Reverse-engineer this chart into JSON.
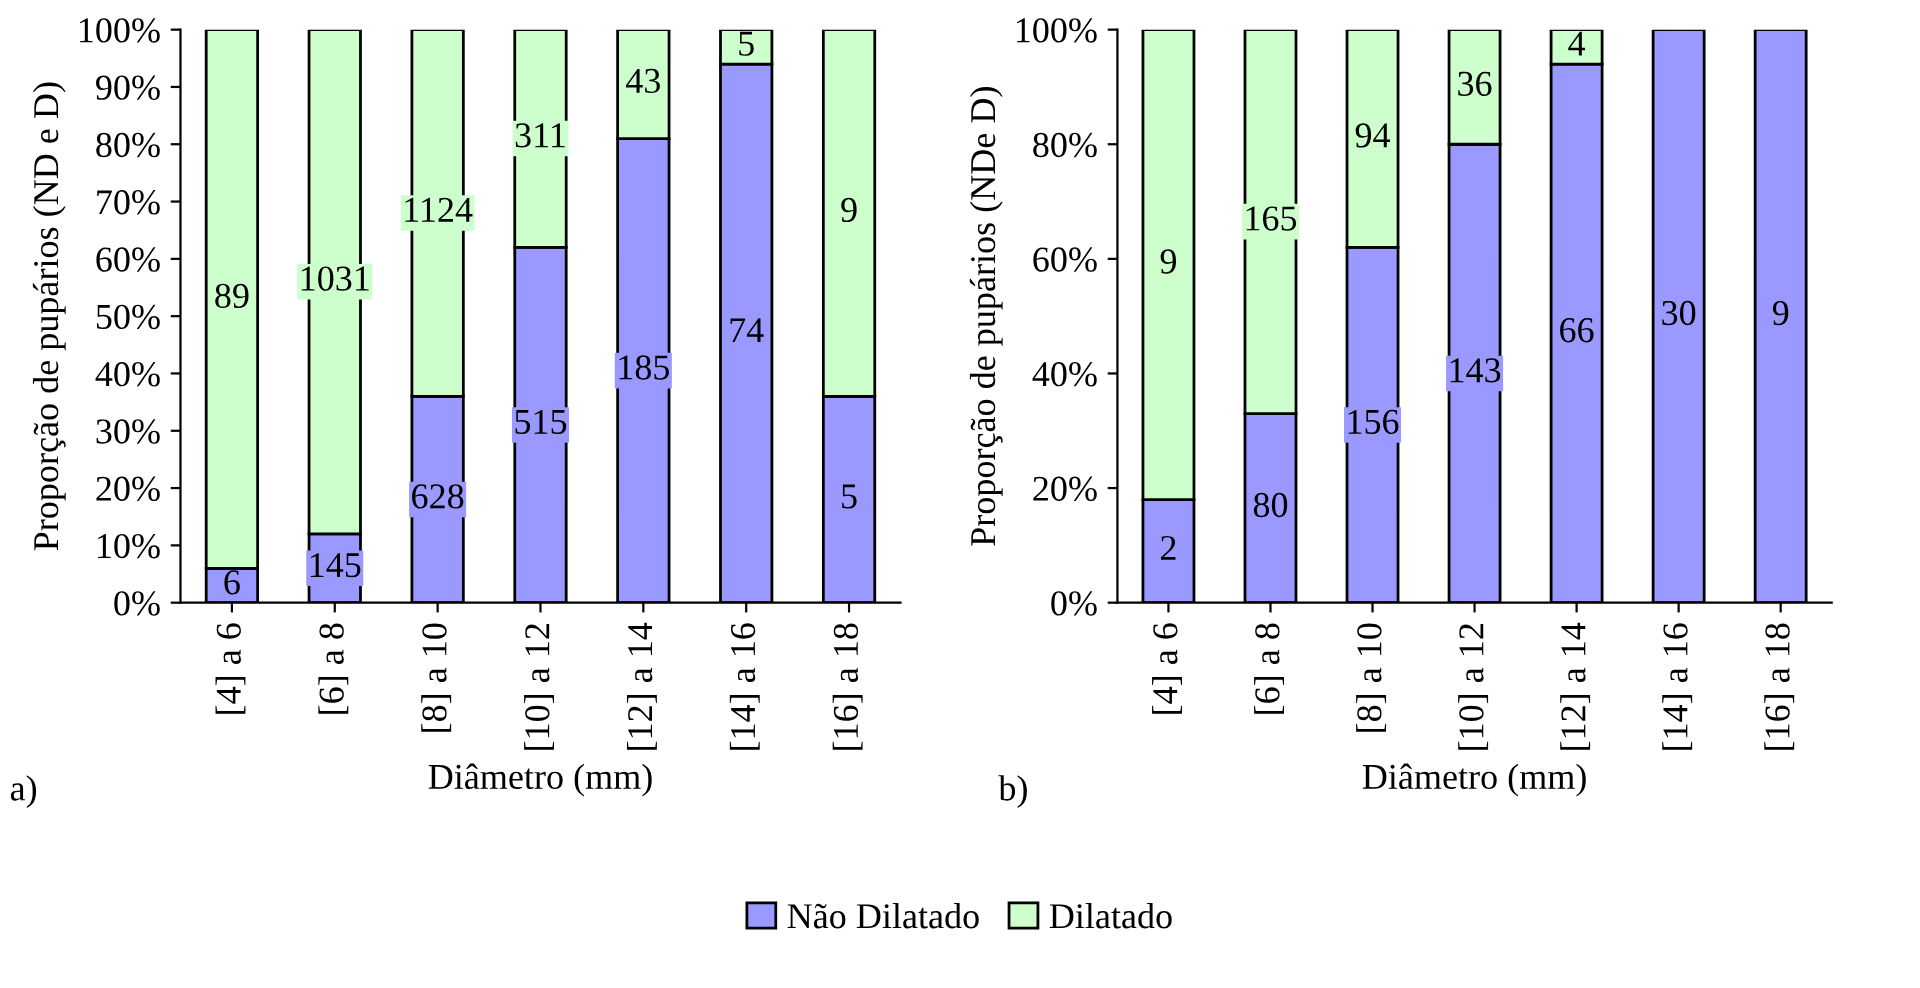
{
  "chart_data": [
    {
      "type": "bar",
      "stacked": true,
      "xlabel": "Diâmetro (mm)",
      "ylabel": "Proporção de pupários (ND e D)",
      "categories": [
        "[4] a 6",
        "[6] a 8",
        "[8] a 10",
        "[10] a 12",
        "[12] a 14",
        "[14] a 16",
        "[16] a 18"
      ],
      "series": [
        {
          "name": "Não Dilatado",
          "color": "#9999ff",
          "values": [
            6,
            12,
            36,
            62,
            81,
            94,
            36
          ]
        },
        {
          "name": "Dilatado",
          "color": "#ccffcc",
          "values": [
            94,
            88,
            64,
            38,
            19,
            6,
            64
          ]
        }
      ],
      "ylim": [
        0,
        100
      ],
      "yticks": [
        {
          "value": 0,
          "label": "0%"
        },
        {
          "value": 10,
          "label": "10%"
        },
        {
          "value": 20,
          "label": "20%"
        },
        {
          "value": 30,
          "label": "30%"
        },
        {
          "value": 40,
          "label": "40%"
        },
        {
          "value": 50,
          "label": "50%"
        },
        {
          "value": 60,
          "label": "60%"
        },
        {
          "value": 70,
          "label": "70%"
        },
        {
          "value": 80,
          "label": "80%"
        },
        {
          "value": 90,
          "label": "90%"
        },
        {
          "value": 100,
          "label": "100%"
        }
      ],
      "annotations": [
        "a)",
        "6",
        "145",
        "628",
        "515",
        "185",
        "74",
        "5",
        "89",
        "1031",
        "1124",
        "311",
        "43",
        "5",
        "9"
      ],
      "legend": "bottom"
    },
    {
      "type": "bar",
      "stacked": true,
      "xlabel": "Diâmetro (mm)",
      "ylabel": "Proporção de pupários (NDe D)",
      "categories": [
        "[4] a 6",
        "[6] a 8",
        "[8] a 10",
        "[10] a 12",
        "[12] a 14",
        "[14] a 16",
        "[16] a 18"
      ],
      "series": [
        {
          "color": "#9999ff",
          "values": [
            18,
            33,
            62,
            80,
            94,
            100,
            100
          ]
        },
        {
          "color": "#ccffcc",
          "values": [
            82,
            67,
            38,
            20,
            6,
            null,
            null
          ]
        }
      ],
      "ylim": [
        0,
        100
      ],
      "yticks": [
        {
          "value": 0,
          "label": "0%"
        },
        {
          "value": 20,
          "label": "20%"
        },
        {
          "value": 40,
          "label": "40%"
        },
        {
          "value": 60,
          "label": "60%"
        },
        {
          "value": 80,
          "label": "80%"
        },
        {
          "value": 100,
          "label": "100%"
        }
      ],
      "annotations": [
        "b)",
        "2",
        "80",
        "156",
        "143",
        "66",
        "30",
        "9",
        "9",
        "165",
        "94",
        "36",
        "4"
      ]
    }
  ]
}
